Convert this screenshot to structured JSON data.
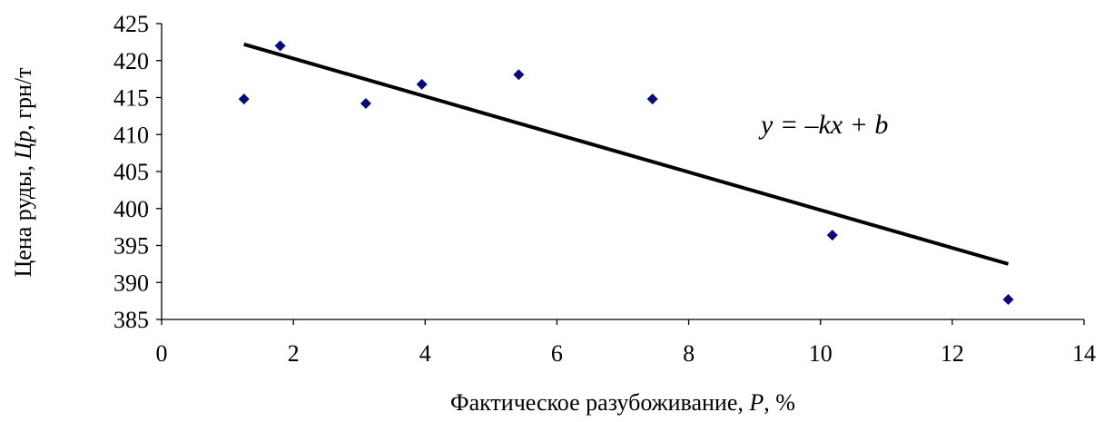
{
  "chart_data": {
    "type": "scatter",
    "title": "",
    "xlabel": {
      "prefix": "Фактическое разубоживание, ",
      "var": "P",
      "suffix": ", %"
    },
    "ylabel": {
      "prefix": "Цена руды, ",
      "var": "Цр",
      "suffix": ", грн/т"
    },
    "xlim": [
      0,
      14
    ],
    "ylim": [
      385,
      425
    ],
    "xticks": [
      "0",
      "2",
      "4",
      "6",
      "8",
      "10",
      "12",
      "14"
    ],
    "yticks": [
      "385",
      "390",
      "395",
      "400",
      "405",
      "410",
      "415",
      "420",
      "425"
    ],
    "points": [
      {
        "x": 1.25,
        "y": 414.8
      },
      {
        "x": 1.8,
        "y": 422.0
      },
      {
        "x": 3.1,
        "y": 414.2
      },
      {
        "x": 3.95,
        "y": 416.8
      },
      {
        "x": 5.42,
        "y": 418.1
      },
      {
        "x": 7.45,
        "y": 414.8
      },
      {
        "x": 10.18,
        "y": 396.4
      },
      {
        "x": 12.85,
        "y": 387.7
      }
    ],
    "trendline": {
      "x": [
        1.25,
        12.85
      ],
      "y": [
        422.2,
        392.5
      ]
    },
    "marker_color": "#0a0a7a",
    "line_color": "#000000",
    "annotation": "y = –kx + b",
    "grid": false,
    "legend": "none"
  }
}
